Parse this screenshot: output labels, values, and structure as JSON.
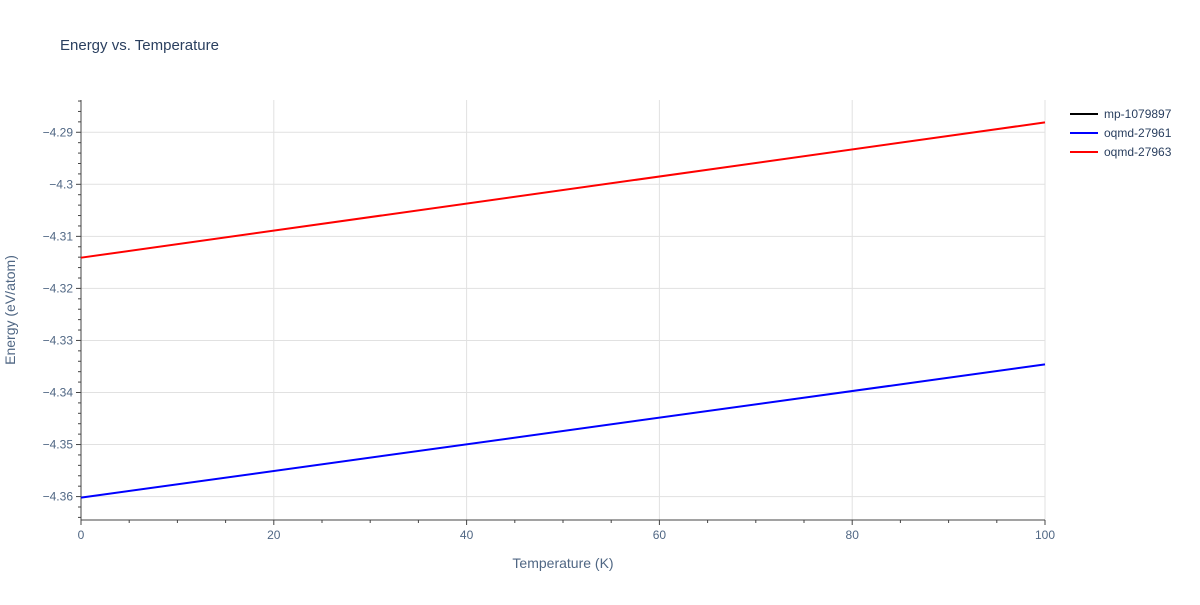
{
  "chart_data": {
    "type": "line",
    "title": "Energy vs. Temperature",
    "xlabel": "Temperature (K)",
    "ylabel": "Energy (eV/atom)",
    "xlim": [
      0,
      100
    ],
    "ylim": [
      -4.3645,
      -4.2838
    ],
    "x_ticks": [
      0,
      20,
      40,
      60,
      80,
      100
    ],
    "y_ticks": [
      -4.36,
      -4.35,
      -4.34,
      -4.33,
      -4.32,
      -4.31,
      -4.3,
      -4.29
    ],
    "y_tick_labels": [
      "−4.36",
      "−4.35",
      "−4.34",
      "−4.33",
      "−4.32",
      "−4.31",
      "−4.3",
      "−4.29"
    ],
    "grid": true,
    "legend_position": "top-right",
    "series": [
      {
        "name": "mp-1079897",
        "color": "#000000",
        "x": [],
        "y": []
      },
      {
        "name": "oqmd-27961",
        "color": "#0000ff",
        "x": [
          0,
          100
        ],
        "y": [
          -4.3602,
          -4.3346
        ]
      },
      {
        "name": "oqmd-27963",
        "color": "#ff0000",
        "x": [
          0,
          100
        ],
        "y": [
          -4.3141,
          -4.2881
        ]
      }
    ]
  }
}
